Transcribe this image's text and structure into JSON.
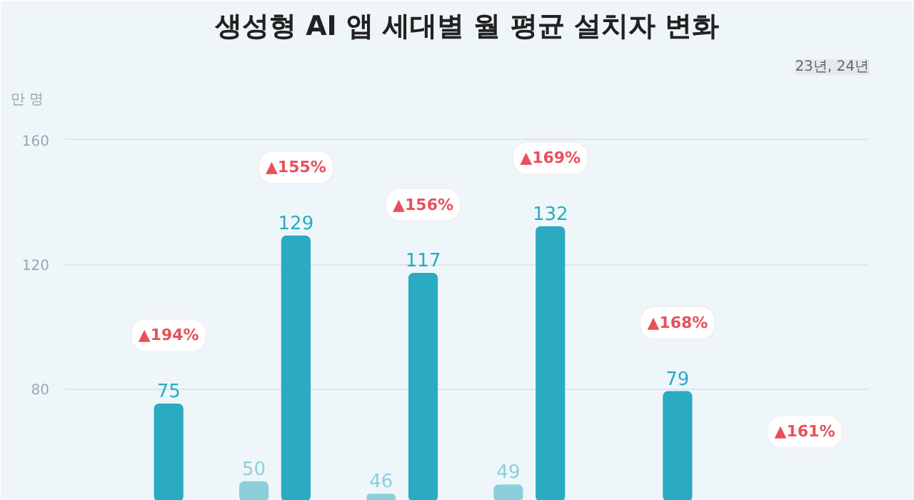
{
  "chart_data": {
    "type": "bar",
    "title": "생성형 AI 앱 세대별 월 평균 설치자 변화",
    "subtitle": "23년, 24년",
    "ylabel": "만 명",
    "categories": [
      null,
      null,
      null,
      null,
      null,
      null
    ],
    "series": [
      {
        "color": "#8ccfdc",
        "values": [
          null,
          50,
          46,
          49,
          null,
          null
        ]
      },
      {
        "color": "#2aabc2",
        "values": [
          75,
          129,
          117,
          132,
          79,
          null
        ]
      }
    ],
    "annotations": [
      "▲194%",
      "▲155%",
      "▲156%",
      "▲169%",
      "▲168%",
      "▲161%"
    ],
    "ylim": [
      44,
      168
    ],
    "yticks": [
      80,
      120,
      160
    ],
    "grid": "y",
    "data_labels": true,
    "tick_labels": "y"
  }
}
